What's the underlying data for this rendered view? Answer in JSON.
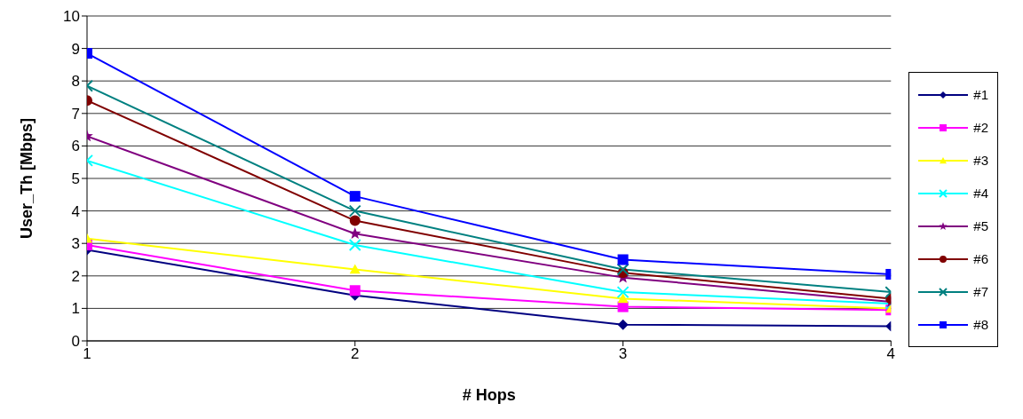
{
  "chart_data": {
    "type": "line",
    "xlabel": "# Hops",
    "ylabel": "User_Th [Mbps]",
    "x": [
      1,
      2,
      3,
      4
    ],
    "xlim": [
      1,
      4
    ],
    "xticks": [
      1,
      2,
      3,
      4
    ],
    "ylim": [
      0,
      10
    ],
    "yticks": [
      0,
      1,
      2,
      3,
      4,
      5,
      6,
      7,
      8,
      9,
      10
    ],
    "grid": "y",
    "legend": "right",
    "line_style": "solid",
    "series": [
      {
        "name": "#1",
        "color": "#000080",
        "marker": "diamond",
        "values": [
          2.8,
          1.4,
          0.5,
          0.45
        ]
      },
      {
        "name": "#2",
        "color": "#ff00ff",
        "marker": "square",
        "values": [
          2.95,
          1.55,
          1.05,
          0.95
        ]
      },
      {
        "name": "#3",
        "color": "#ffff00",
        "marker": "triangle",
        "values": [
          3.15,
          2.2,
          1.3,
          1.0
        ]
      },
      {
        "name": "#4",
        "color": "#00ffff",
        "marker": "cross",
        "values": [
          5.55,
          2.95,
          1.5,
          1.15
        ]
      },
      {
        "name": "#5",
        "color": "#800080",
        "marker": "star",
        "values": [
          6.3,
          3.3,
          1.95,
          1.2
        ]
      },
      {
        "name": "#6",
        "color": "#800000",
        "marker": "circle",
        "values": [
          7.4,
          3.7,
          2.1,
          1.3
        ]
      },
      {
        "name": "#7",
        "color": "#008080",
        "marker": "cross",
        "values": [
          7.85,
          4.0,
          2.2,
          1.5
        ]
      },
      {
        "name": "#8",
        "color": "#0000ff",
        "marker": "square",
        "values": [
          8.85,
          4.45,
          2.5,
          2.05
        ]
      }
    ]
  }
}
